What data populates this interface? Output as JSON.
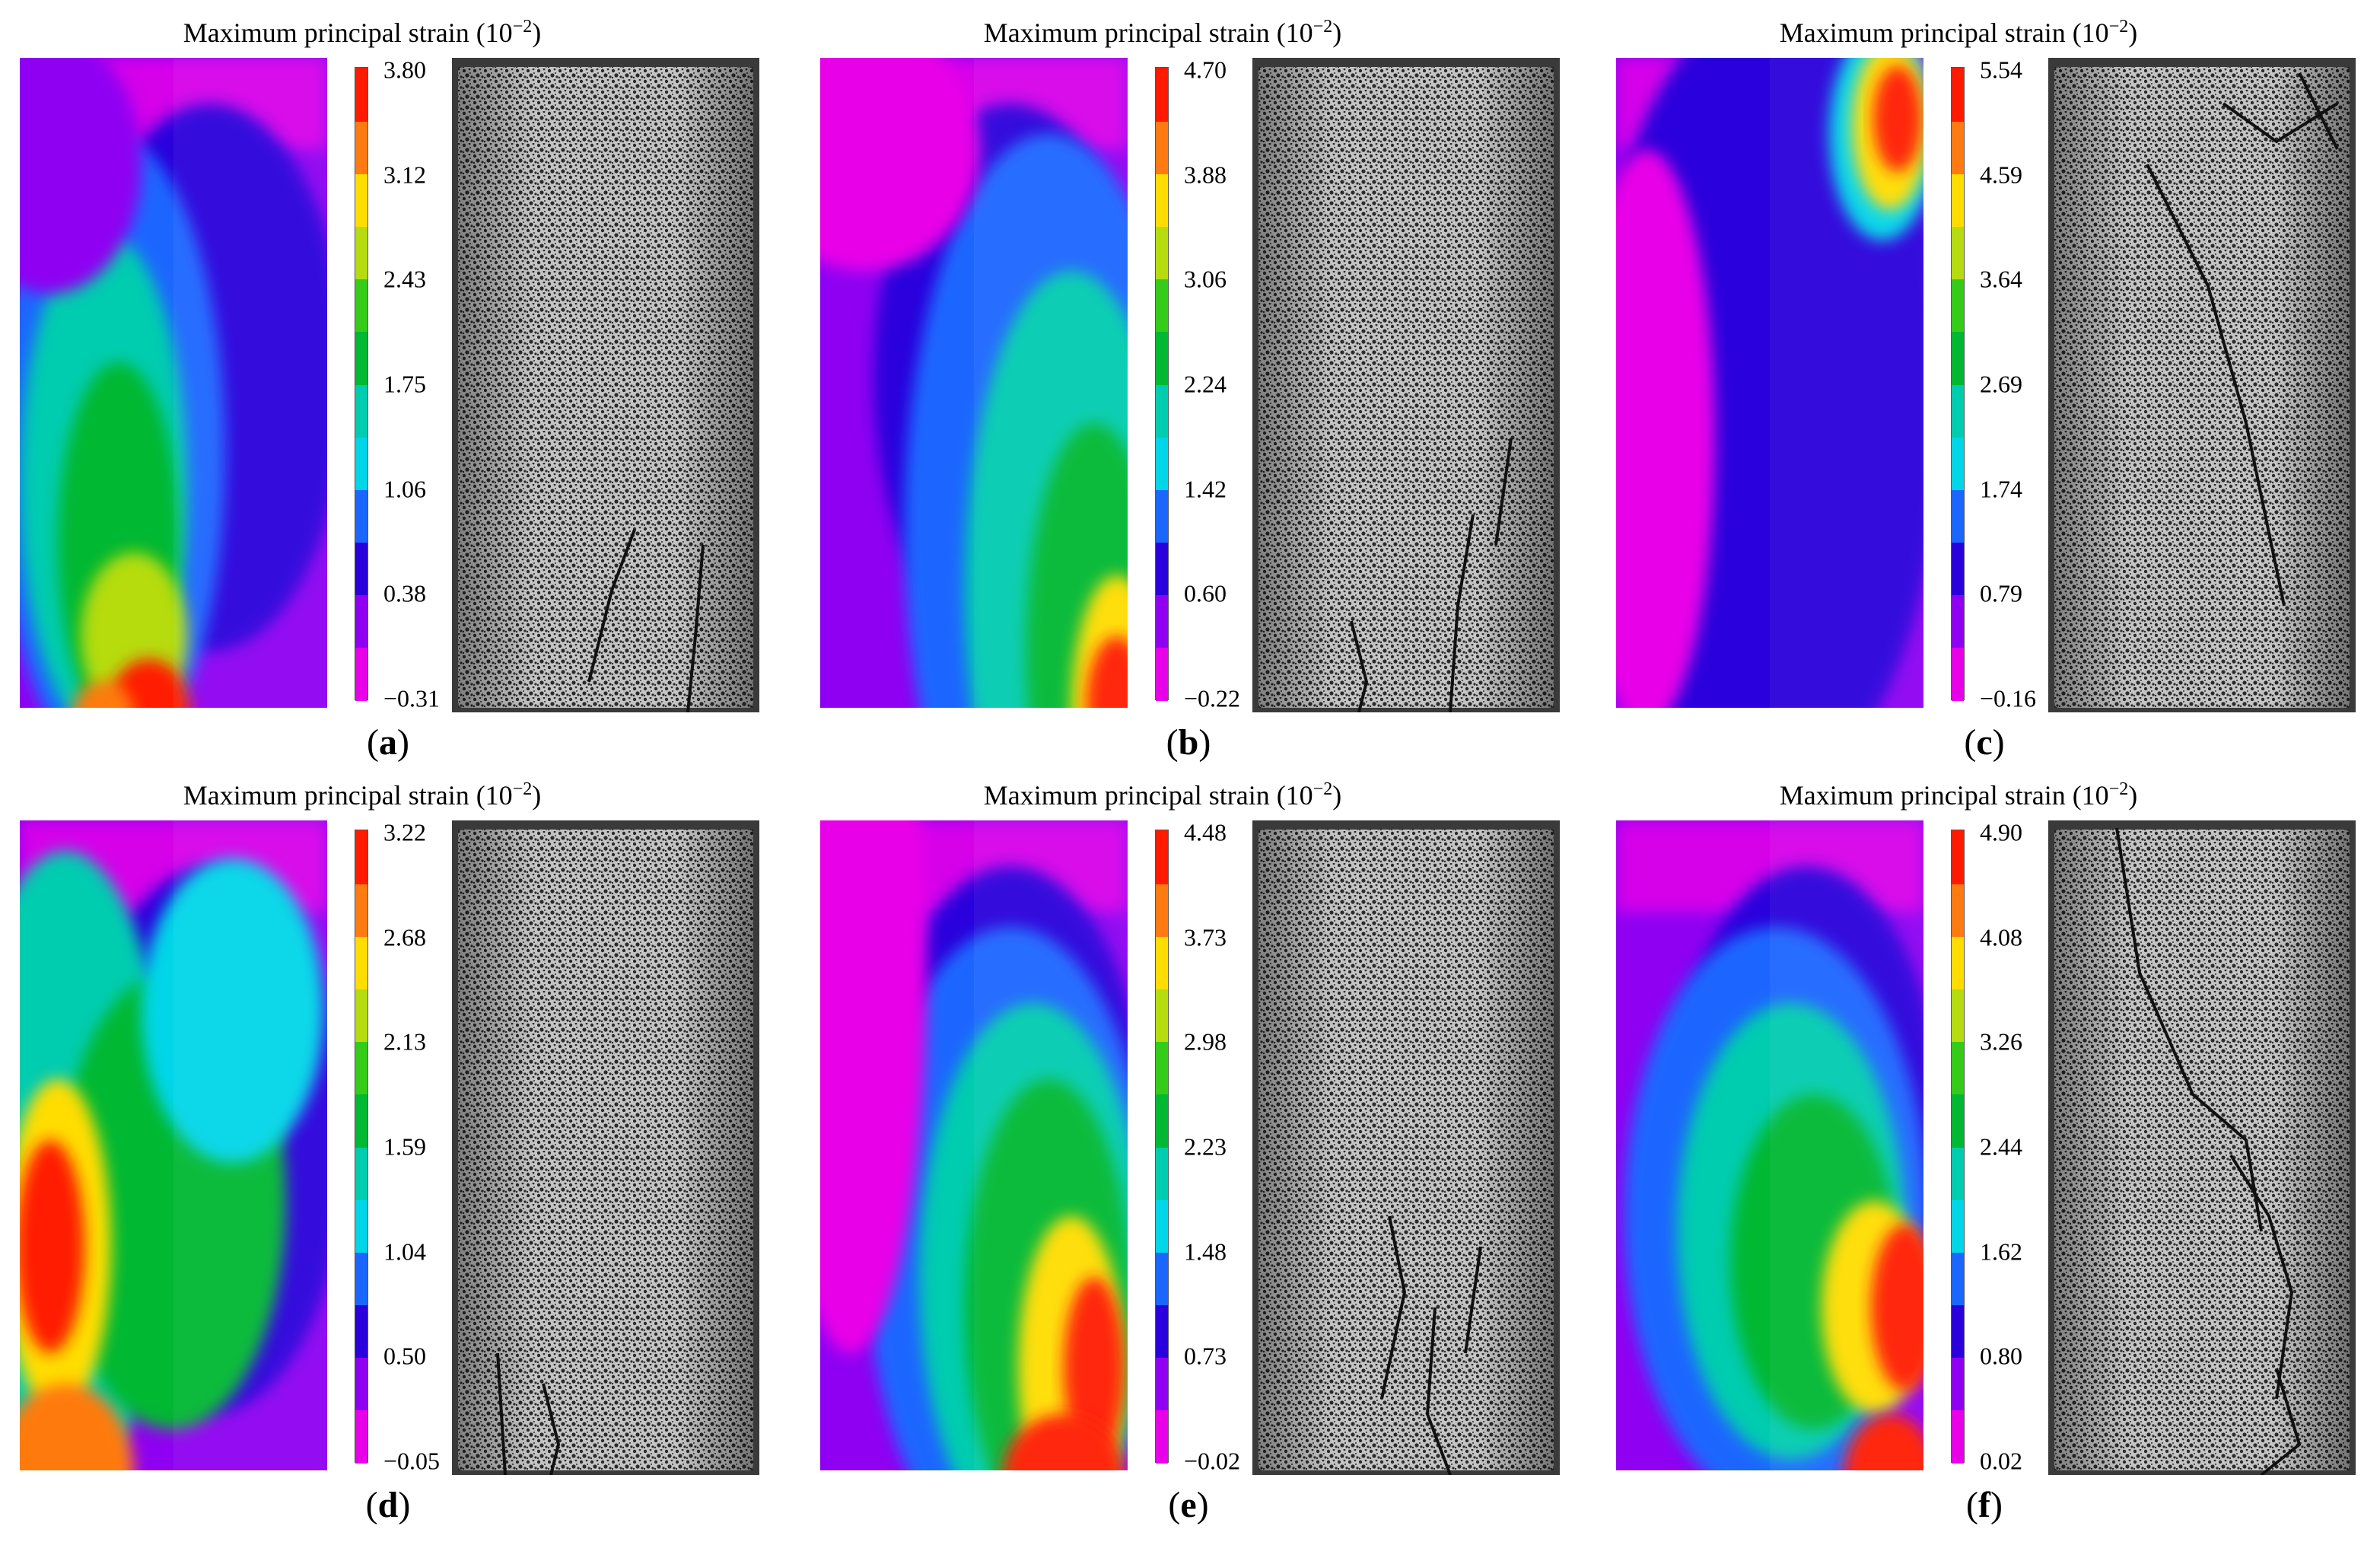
{
  "panels": [
    {
      "id": "a",
      "letter": "a",
      "title_text": "Maximum principal strain (10",
      "title_exp": "−2",
      "title_close": ")",
      "ticks": [
        "3.80",
        "3.12",
        "2.43",
        "1.75",
        "1.06",
        "0.38",
        "−0.31"
      ],
      "variant": 0,
      "crack": 0
    },
    {
      "id": "b",
      "letter": "b",
      "title_text": "Maximum principal strain (10",
      "title_exp": "−2",
      "title_close": ")",
      "ticks": [
        "4.70",
        "3.88",
        "3.06",
        "2.24",
        "1.42",
        "0.60",
        "−0.22"
      ],
      "variant": 1,
      "crack": 1
    },
    {
      "id": "c",
      "letter": "c",
      "title_text": "Maximum principal strain (10",
      "title_exp": "−2",
      "title_close": ")",
      "ticks": [
        "5.54",
        "4.59",
        "3.64",
        "2.69",
        "1.74",
        "0.79",
        "−0.16"
      ],
      "variant": 2,
      "crack": 2
    },
    {
      "id": "d",
      "letter": "d",
      "title_text": "Maximum principal strain (10",
      "title_exp": "−2",
      "title_close": ")",
      "ticks": [
        "3.22",
        "2.68",
        "2.13",
        "1.59",
        "1.04",
        "0.50",
        "−0.05"
      ],
      "variant": 3,
      "crack": 3
    },
    {
      "id": "e",
      "letter": "e",
      "title_text": "Maximum principal strain (10",
      "title_exp": "−2",
      "title_close": ")",
      "ticks": [
        "4.48",
        "3.73",
        "2.98",
        "2.23",
        "1.48",
        "0.73",
        "−0.02"
      ],
      "variant": 4,
      "crack": 4
    },
    {
      "id": "f",
      "letter": "f",
      "title_text": "Maximum principal strain (10",
      "title_exp": "−2",
      "title_close": ")",
      "ticks": [
        "4.90",
        "4.08",
        "3.26",
        "2.44",
        "1.62",
        "0.80",
        "0.02"
      ],
      "variant": 5,
      "crack": 5
    }
  ],
  "colormap": [
    "#e800e8",
    "#8f00f2",
    "#2a00dc",
    "#1a66ff",
    "#00d6e8",
    "#00ccb0",
    "#00b832",
    "#34cc18",
    "#b6dc10",
    "#ffdd00",
    "#ff7a10",
    "#ff1a00"
  ]
}
